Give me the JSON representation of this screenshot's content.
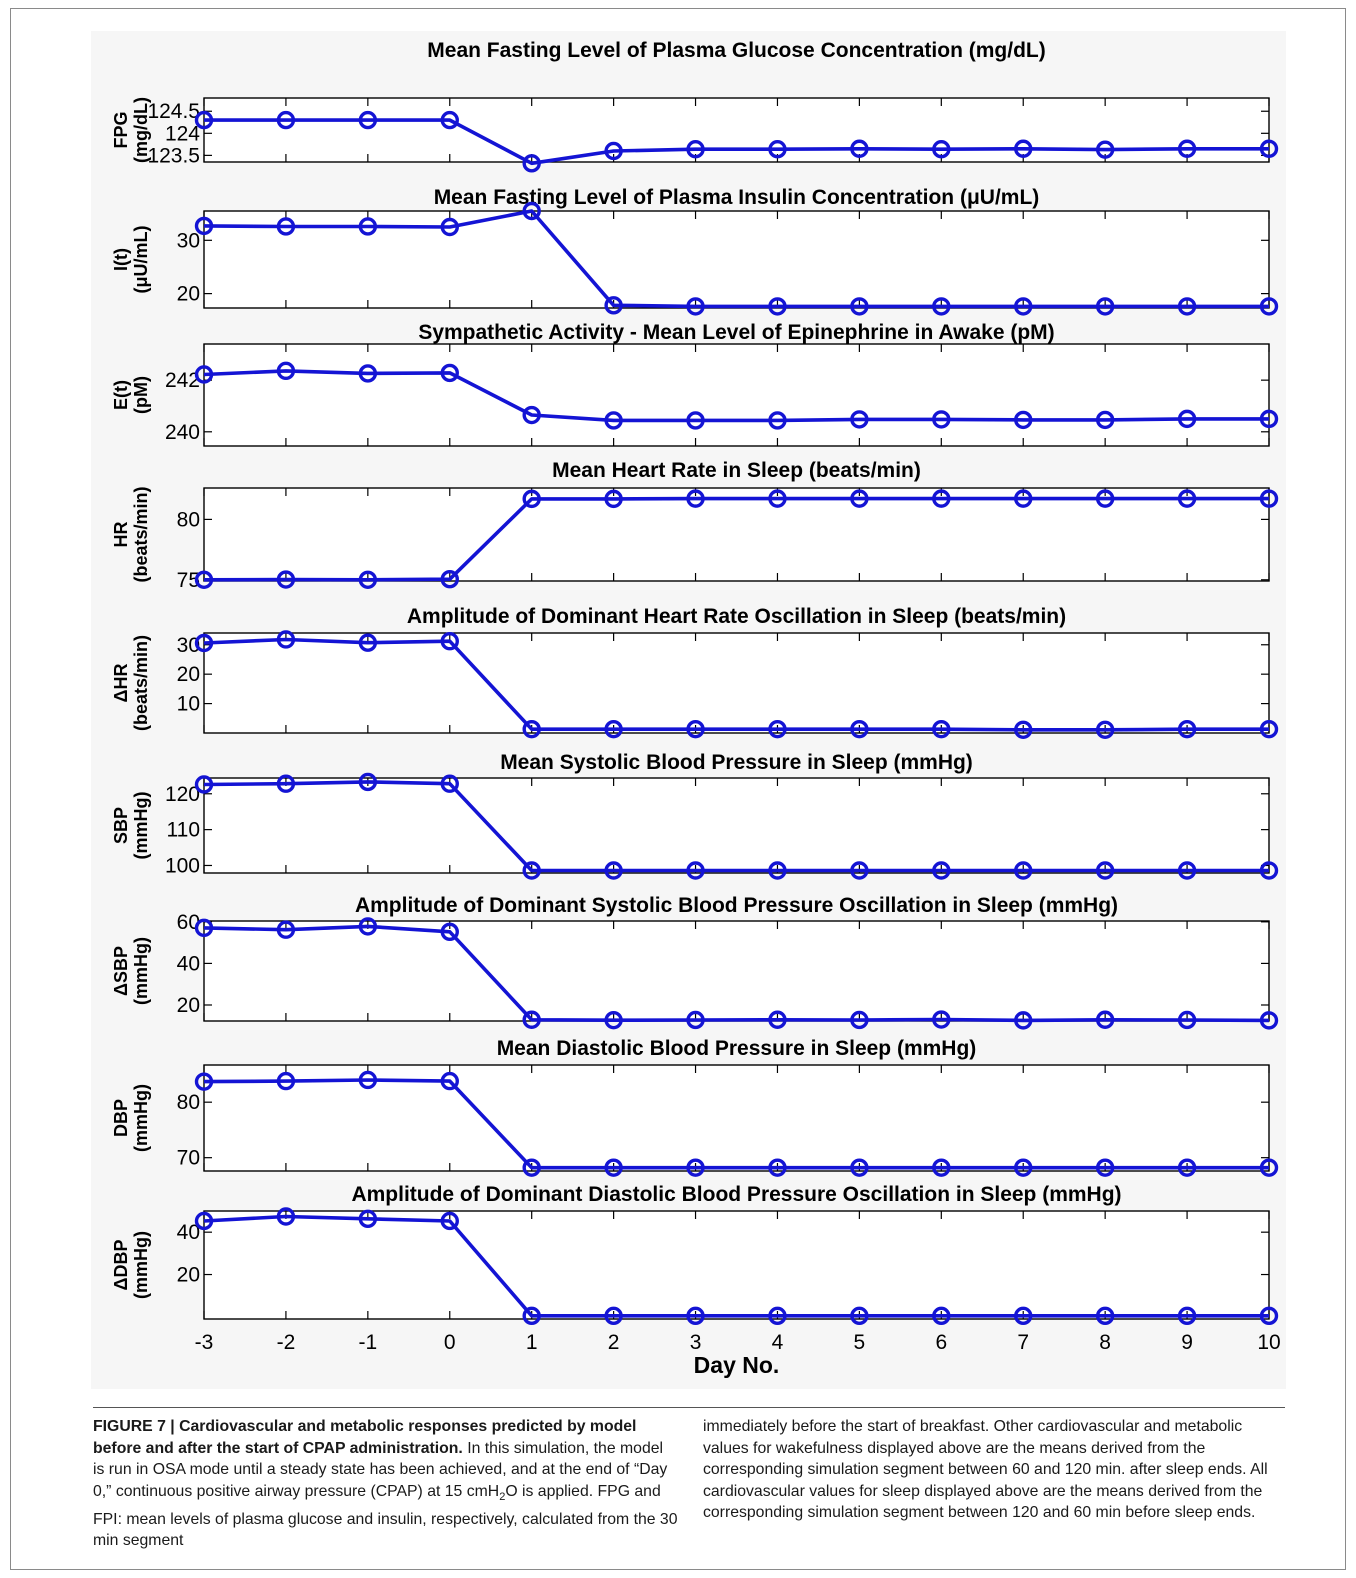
{
  "colors": {
    "series": "#1414d4",
    "axes": "#000000",
    "figure_background": "#f6f6f6",
    "page_background": "#ffffff"
  },
  "chart_data": [
    {
      "type": "line",
      "title": "Mean Fasting Level of Plasma Glucose Concentration (mg/dL)",
      "ylabel": "FPG",
      "ylabel_unit": "(mg/dL)",
      "x": [
        -3,
        -2,
        -1,
        0,
        1,
        2,
        3,
        4,
        5,
        6,
        7,
        8,
        9,
        10
      ],
      "values": [
        124.3,
        124.3,
        124.3,
        124.3,
        123.32,
        123.6,
        123.64,
        123.64,
        123.65,
        123.64,
        123.65,
        123.63,
        123.65,
        123.65
      ],
      "ylim": [
        123.35,
        124.8
      ],
      "yticks": [
        123.5,
        124,
        124.5
      ],
      "ytick_labels": [
        "123.5",
        "124",
        "124.5"
      ],
      "xlim": [
        -3,
        10
      ],
      "marker": "circle"
    },
    {
      "type": "line",
      "title": "Mean Fasting Level of Plasma Insulin Concentration (μU/mL)",
      "ylabel": "I(t)",
      "ylabel_unit": "(μU/mL)",
      "x": [
        -3,
        -2,
        -1,
        0,
        1,
        2,
        3,
        4,
        5,
        6,
        7,
        8,
        9,
        10
      ],
      "values": [
        32.7,
        32.6,
        32.6,
        32.5,
        35.5,
        17.8,
        17.6,
        17.6,
        17.6,
        17.6,
        17.6,
        17.6,
        17.6,
        17.6
      ],
      "ylim": [
        17.3,
        35.5
      ],
      "yticks": [
        20,
        30
      ],
      "ytick_labels": [
        "20",
        "30"
      ],
      "xlim": [
        -3,
        10
      ],
      "marker": "circle"
    },
    {
      "type": "line",
      "title": "Sympathetic Activity - Mean Level of Epinephrine in Awake (pM)",
      "ylabel": "E(t)",
      "ylabel_unit": "(pM)",
      "x": [
        -3,
        -2,
        -1,
        0,
        1,
        2,
        3,
        4,
        5,
        6,
        7,
        8,
        9,
        10
      ],
      "values": [
        242.22,
        242.36,
        242.26,
        242.28,
        240.65,
        240.44,
        240.44,
        240.44,
        240.48,
        240.48,
        240.46,
        240.46,
        240.5,
        240.5
      ],
      "ylim": [
        239.45,
        243.4
      ],
      "yticks": [
        240,
        242
      ],
      "ytick_labels": [
        "240",
        "242"
      ],
      "xlim": [
        -3,
        10
      ],
      "marker": "circle"
    },
    {
      "type": "line",
      "title": "Mean Heart Rate in Sleep (beats/min)",
      "ylabel": "HR",
      "ylabel_unit": "(beats/min)",
      "x": [
        -3,
        -2,
        -1,
        0,
        1,
        2,
        3,
        4,
        5,
        6,
        7,
        8,
        9,
        10
      ],
      "values": [
        75.0,
        75.02,
        75.0,
        75.05,
        81.7,
        81.7,
        81.72,
        81.72,
        81.72,
        81.72,
        81.72,
        81.72,
        81.72,
        81.72
      ],
      "ylim": [
        74.9,
        82.6
      ],
      "yticks": [
        75,
        80
      ],
      "ytick_labels": [
        "75",
        "80"
      ],
      "xlim": [
        -3,
        10
      ],
      "marker": "circle"
    },
    {
      "type": "line",
      "title": "Amplitude of Dominant Heart Rate Oscillation in Sleep (beats/min)",
      "ylabel": "ΔHR",
      "ylabel_unit": "(beats/min)",
      "x": [
        -3,
        -2,
        -1,
        0,
        1,
        2,
        3,
        4,
        5,
        6,
        7,
        8,
        9,
        10
      ],
      "values": [
        30.6,
        31.8,
        30.7,
        31.2,
        1.3,
        1.3,
        1.3,
        1.3,
        1.3,
        1.3,
        1.1,
        1.1,
        1.3,
        1.3
      ],
      "ylim": [
        0,
        34
      ],
      "yticks": [
        10,
        20,
        30
      ],
      "ytick_labels": [
        "10",
        "20",
        "30"
      ],
      "xlim": [
        -3,
        10
      ],
      "marker": "circle"
    },
    {
      "type": "line",
      "title": "Mean Systolic Blood Pressure in Sleep (mmHg)",
      "ylabel": "SBP",
      "ylabel_unit": "(mmHg)",
      "x": [
        -3,
        -2,
        -1,
        0,
        1,
        2,
        3,
        4,
        5,
        6,
        7,
        8,
        9,
        10
      ],
      "values": [
        122.6,
        122.8,
        123.3,
        122.8,
        98.6,
        98.6,
        98.6,
        98.6,
        98.6,
        98.6,
        98.6,
        98.6,
        98.6,
        98.6
      ],
      "ylim": [
        97.9,
        124.4
      ],
      "yticks": [
        100,
        110,
        120
      ],
      "ytick_labels": [
        "100",
        "110",
        "120"
      ],
      "xlim": [
        -3,
        10
      ],
      "marker": "circle"
    },
    {
      "type": "line",
      "title": "Amplitude of Dominant Systolic Blood Pressure Oscillation in Sleep (mmHg)",
      "ylabel": "ΔSBP",
      "ylabel_unit": "(mmHg)",
      "x": [
        -3,
        -2,
        -1,
        0,
        1,
        2,
        3,
        4,
        5,
        6,
        7,
        8,
        9,
        10
      ],
      "values": [
        57.1,
        56.2,
        57.8,
        55.2,
        12.9,
        12.7,
        12.8,
        12.9,
        12.8,
        13.0,
        12.6,
        12.9,
        12.8,
        12.6
      ],
      "ylim": [
        12.3,
        60.4
      ],
      "yticks": [
        20,
        40,
        60
      ],
      "ytick_labels": [
        "20",
        "40",
        "60"
      ],
      "xlim": [
        -3,
        10
      ],
      "marker": "circle"
    },
    {
      "type": "line",
      "title": "Mean Diastolic Blood Pressure in Sleep (mmHg)",
      "ylabel": "DBP",
      "ylabel_unit": "(mmHg)",
      "x": [
        -3,
        -2,
        -1,
        0,
        1,
        2,
        3,
        4,
        5,
        6,
        7,
        8,
        9,
        10
      ],
      "values": [
        83.7,
        83.8,
        84.0,
        83.8,
        68.2,
        68.2,
        68.2,
        68.2,
        68.2,
        68.2,
        68.2,
        68.2,
        68.2,
        68.2
      ],
      "ylim": [
        67.6,
        86.7
      ],
      "yticks": [
        70,
        80
      ],
      "ytick_labels": [
        "70",
        "80"
      ],
      "xlim": [
        -3,
        10
      ],
      "marker": "circle"
    },
    {
      "type": "line",
      "title": "Amplitude of Dominant Diastolic Blood Pressure Oscillation in Sleep (mmHg)",
      "ylabel": "ΔDBP",
      "ylabel_unit": "(mmHg)",
      "x": [
        -3,
        -2,
        -1,
        0,
        1,
        2,
        3,
        4,
        5,
        6,
        7,
        8,
        9,
        10
      ],
      "values": [
        45.3,
        47.4,
        46.3,
        45.3,
        0.5,
        0.5,
        0.5,
        0.5,
        0.5,
        0.5,
        0.5,
        0.5,
        0.5,
        0.5
      ],
      "ylim": [
        -1,
        50
      ],
      "yticks": [
        20,
        40
      ],
      "ytick_labels": [
        "20",
        "40"
      ],
      "xlim": [
        -3,
        10
      ],
      "marker": "circle"
    }
  ],
  "x_axis": {
    "label": "Day No.",
    "ticks": [
      -3,
      -2,
      -1,
      0,
      1,
      2,
      3,
      4,
      5,
      6,
      7,
      8,
      9,
      10
    ],
    "tick_labels": [
      "-3",
      "-2",
      "-1",
      "0",
      "1",
      "2",
      "3",
      "4",
      "5",
      "6",
      "7",
      "8",
      "9",
      "10"
    ]
  },
  "caption": {
    "label": "FIGURE 7 |",
    "title": "Cardiovascular and metabolic responses predicted by model before and after the start of CPAP administration.",
    "text_1": "In this simulation, the model is run in OSA mode until a steady state has been achieved, and at the end of “Day 0,” continuous positive airway pressure (CPAP) at 15 cmH",
    "subscript": "2",
    "text_2": "O is applied. FPG and FPI: mean levels of plasma glucose and insulin, respectively, calculated from the 30 min segment",
    "text_right": "immediately before the start of breakfast. Other cardiovascular and metabolic values for wakefulness displayed above are the means derived from the corresponding simulation segment between 60 and 120 min. after sleep ends. All cardiovascular values for sleep displayed above are the means derived from the corresponding simulation segment between 120 and 60 min before sleep ends."
  }
}
